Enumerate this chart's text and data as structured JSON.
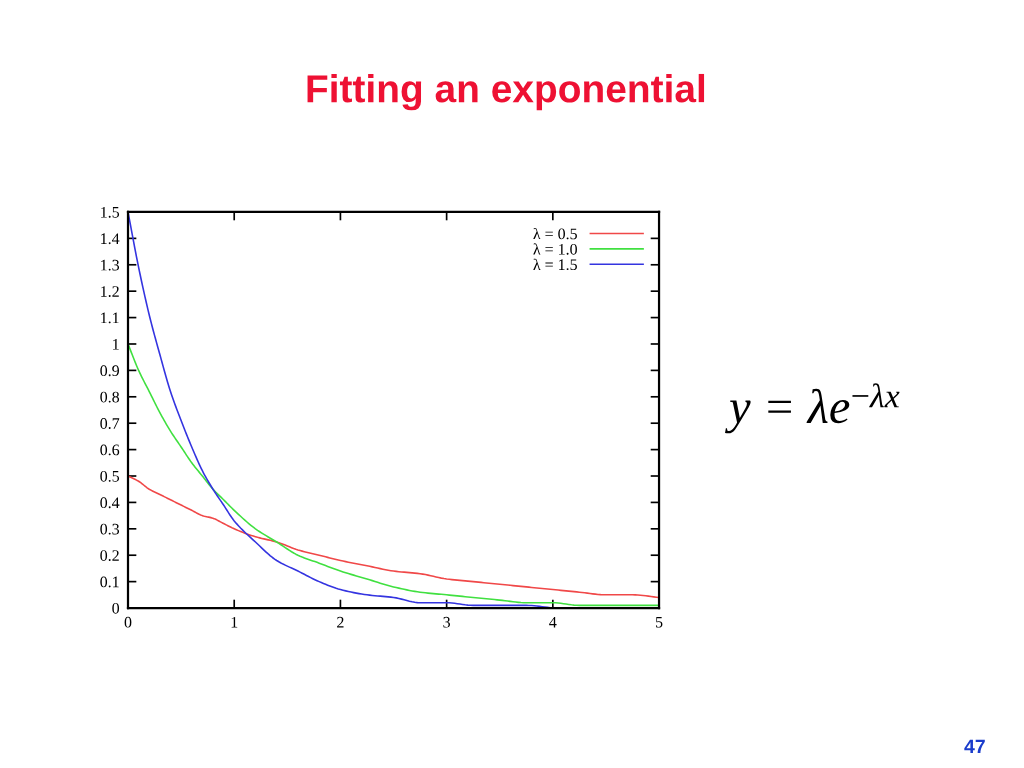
{
  "chart_data": {
    "type": "line",
    "title": "Fitting an exponential",
    "annotations": [
      "y = λe$^{−λx}$",
      "47"
    ],
    "x": [
      0,
      0.1,
      0.2,
      0.3,
      0.4,
      0.5,
      0.6,
      0.7,
      0.8,
      0.9,
      1.0,
      1.2,
      1.4,
      1.6,
      1.8,
      2.0,
      2.25,
      2.5,
      2.75,
      3.0,
      3.25,
      3.5,
      3.75,
      4.0,
      4.25,
      4.5,
      4.75,
      5.0
    ],
    "series": [
      {
        "name": "λ = 0.5",
        "color": "#f04848",
        "values": [
          0.5,
          0.48,
          0.45,
          0.43,
          0.41,
          0.39,
          0.37,
          0.35,
          0.34,
          0.32,
          0.3,
          0.27,
          0.25,
          0.22,
          0.2,
          0.18,
          0.16,
          0.14,
          0.13,
          0.11,
          0.1,
          0.09,
          0.08,
          0.07,
          0.06,
          0.05,
          0.05,
          0.04
        ]
      },
      {
        "name": "λ = 1.0",
        "color": "#40e040",
        "values": [
          1.0,
          0.9,
          0.82,
          0.74,
          0.67,
          0.61,
          0.55,
          0.5,
          0.45,
          0.41,
          0.37,
          0.3,
          0.25,
          0.2,
          0.17,
          0.14,
          0.11,
          0.08,
          0.06,
          0.05,
          0.04,
          0.03,
          0.02,
          0.02,
          0.01,
          0.01,
          0.01,
          0.01
        ]
      },
      {
        "name": "λ = 1.5",
        "color": "#3434e0",
        "values": [
          1.5,
          1.29,
          1.11,
          0.96,
          0.82,
          0.71,
          0.61,
          0.52,
          0.45,
          0.39,
          0.33,
          0.25,
          0.18,
          0.14,
          0.1,
          0.07,
          0.05,
          0.04,
          0.02,
          0.02,
          0.01,
          0.01,
          0.01,
          0.0,
          null,
          null,
          null,
          null
        ]
      }
    ],
    "xlim": [
      0,
      5
    ],
    "xticks": [
      0,
      1,
      2,
      3,
      4,
      5
    ],
    "ylim": [
      0,
      1.5
    ],
    "yticks": [
      0,
      0.1,
      0.2,
      0.3,
      0.4,
      0.5,
      0.6,
      0.7,
      0.8,
      0.9,
      1,
      1.1,
      1.2,
      1.3,
      1.4,
      1.5
    ],
    "legend": "top right"
  }
}
